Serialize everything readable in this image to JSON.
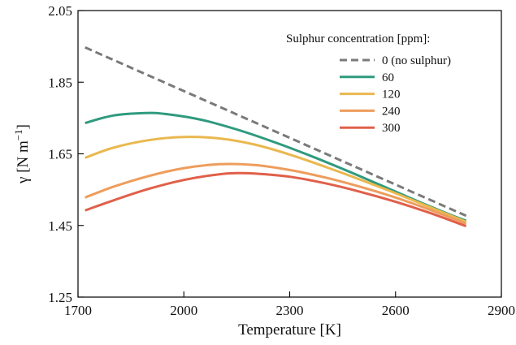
{
  "chart_data": {
    "type": "line",
    "xlabel": "Temperature [K]",
    "ylabel_main": "γ [N m",
    "ylabel_sup": "−1",
    "ylabel_end": "]",
    "xlim": [
      1700,
      2900
    ],
    "ylim": [
      1.25,
      2.05
    ],
    "xticks": [
      "1700",
      "2000",
      "2300",
      "2600",
      "2900"
    ],
    "yticks": [
      "1.25",
      "1.45",
      "1.65",
      "1.85",
      "2.05"
    ],
    "legend_title": "Sulphur concentration [ppm]:",
    "legend_position": "top-right",
    "grid": false,
    "series": [
      {
        "name": "0 (no sulphur)",
        "color": "#7a7a7a",
        "dash": true,
        "x": [
          1720,
          2800
        ],
        "y": [
          1.947,
          1.477
        ]
      },
      {
        "name": "60",
        "color": "#2f9a7e",
        "dash": false,
        "x": [
          1720,
          1800,
          1890,
          1950,
          2050,
          2150,
          2250,
          2350,
          2450,
          2550,
          2650,
          2750,
          2800
        ],
        "y": [
          1.736,
          1.757,
          1.764,
          1.761,
          1.745,
          1.718,
          1.685,
          1.648,
          1.608,
          1.566,
          1.523,
          1.482,
          1.463
        ]
      },
      {
        "name": "120",
        "color": "#eab84f",
        "dash": false,
        "x": [
          1720,
          1800,
          1900,
          2000,
          2100,
          2200,
          2300,
          2400,
          2500,
          2600,
          2700,
          2800
        ],
        "y": [
          1.639,
          1.667,
          1.688,
          1.697,
          1.693,
          1.676,
          1.648,
          1.614,
          1.578,
          1.54,
          1.5,
          1.46
        ]
      },
      {
        "name": "240",
        "color": "#ee9d5c",
        "dash": false,
        "x": [
          1720,
          1800,
          1900,
          2000,
          2100,
          2200,
          2300,
          2400,
          2500,
          2600,
          2700,
          2800
        ],
        "y": [
          1.528,
          1.558,
          1.588,
          1.61,
          1.621,
          1.619,
          1.605,
          1.584,
          1.558,
          1.528,
          1.493,
          1.455
        ]
      },
      {
        "name": "300",
        "color": "#e0604a",
        "dash": false,
        "x": [
          1720,
          1800,
          1900,
          2000,
          2100,
          2150,
          2200,
          2300,
          2400,
          2500,
          2600,
          2700,
          2800
        ],
        "y": [
          1.492,
          1.52,
          1.552,
          1.577,
          1.593,
          1.596,
          1.595,
          1.586,
          1.568,
          1.544,
          1.516,
          1.484,
          1.448
        ]
      }
    ]
  }
}
